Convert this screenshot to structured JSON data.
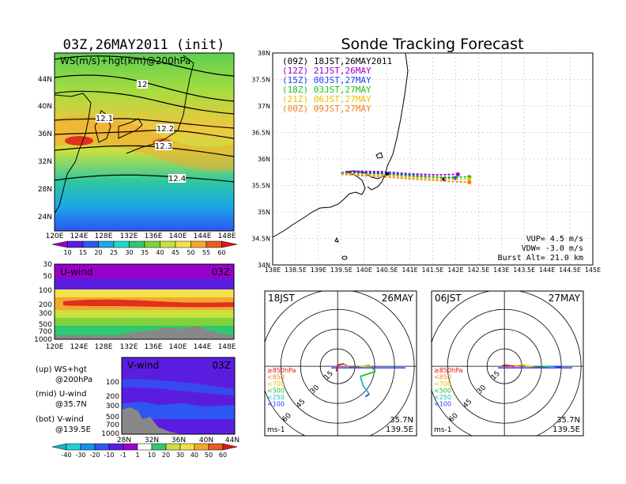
{
  "header": {
    "left_title": "03Z,26MAY2011 (init)",
    "right_title": "Sonde Tracking Forecast"
  },
  "map_panel": {
    "label": "WS(m/s)+hgt(km)@200hPa",
    "lat_ticks": [
      "44N",
      "40N",
      "36N",
      "32N",
      "28N",
      "24N"
    ],
    "lon_ticks": [
      "120E",
      "124E",
      "128E",
      "132E",
      "136E",
      "140E",
      "144E",
      "148E"
    ],
    "contour_labels": [
      "12",
      "12.1",
      "12.2",
      "12.3",
      "12.4"
    ],
    "colorbar_ticks": [
      "10",
      "15",
      "20",
      "25",
      "30",
      "35",
      "40",
      "45",
      "50",
      "55",
      "60"
    ],
    "colorbar_colors": [
      "#9a00cc",
      "#5a1de0",
      "#2e56f0",
      "#1aa8e6",
      "#20d8c8",
      "#30c870",
      "#7fd23c",
      "#c8e040",
      "#f2e04a",
      "#f4a82e",
      "#ee5a22",
      "#d81818"
    ]
  },
  "uwind_panel": {
    "label": "U-wind",
    "time": "03Z",
    "p_ticks": [
      "30",
      "50",
      "100",
      "200",
      "300",
      "500",
      "700",
      "1000"
    ],
    "lon_ticks": [
      "120E",
      "124E",
      "128E",
      "132E",
      "136E",
      "140E",
      "144E",
      "148E"
    ]
  },
  "vwind_panel": {
    "label": "V-wind",
    "time": "03Z",
    "p_ticks": [
      "100",
      "200",
      "300",
      "500",
      "700",
      "1000"
    ],
    "lat_ticks": [
      "28N",
      "32N",
      "36N",
      "40N",
      "44N"
    ],
    "colorbar_ticks": [
      "-40",
      "-30",
      "-20",
      "-10",
      "-1",
      "1",
      "10",
      "20",
      "30",
      "40",
      "50",
      "60"
    ],
    "colorbar_colors": [
      "#18b4c8",
      "#20d0d8",
      "#1a90e8",
      "#2e56f0",
      "#5a1de0",
      "#9a00cc",
      "#ffffff",
      "#30c870",
      "#c8e040",
      "#f2e04a",
      "#f4a82e",
      "#ee5a22",
      "#d81818"
    ]
  },
  "legend_notes": [
    {
      "line1": "(up) WS+hgt",
      "line2": "@200hPa"
    },
    {
      "line1": "(mid) U-wind",
      "line2": "@35.7N"
    },
    {
      "line1": "(bot) V-wind",
      "line2": "@139.5E"
    }
  ],
  "track_panel": {
    "lat_ticks": [
      "38N",
      "37.5N",
      "37N",
      "36.5N",
      "36N",
      "35.5N",
      "35N",
      "34.5N",
      "34N"
    ],
    "lon_ticks": [
      "138E",
      "138.5E",
      "139E",
      "139.5E",
      "140E",
      "140.5E",
      "141E",
      "141.5E",
      "142E",
      "142.5E",
      "143E",
      "143.5E",
      "144E",
      "144.5E",
      "145E"
    ],
    "launches": [
      {
        "text": "(09Z) 18JST,26MAY2011",
        "color": "#000000"
      },
      {
        "text": "(12Z) 21JST,26MAY",
        "color": "#a000c8"
      },
      {
        "text": "(15Z) 00JST,27MAY",
        "color": "#2040ff"
      },
      {
        "text": "(18Z) 03JST,27MAY",
        "color": "#20c020"
      },
      {
        "text": "(21Z) 06JST,27MAY",
        "color": "#f0c000"
      },
      {
        "text": "(00Z) 09JST,27MAY",
        "color": "#f08020"
      }
    ],
    "vup": "VUP= 4.5 m/s",
    "vdw": "VDW= -3.0 m/s",
    "burst": "Burst Alt= 21.0 km"
  },
  "hodo_left": {
    "time": "18JST",
    "date": "26MAY",
    "ring_labels": [
      "15",
      "30",
      "45",
      "60"
    ],
    "levels": [
      {
        "text": "≥850hPa",
        "color": "#e81010"
      },
      {
        "text": "<850",
        "color": "#f08020"
      },
      {
        "text": "<700",
        "color": "#e0c000"
      },
      {
        "text": "<500",
        "color": "#20c020"
      },
      {
        "text": "<250",
        "color": "#18b4c8"
      },
      {
        "text": "<100",
        "color": "#2040ff"
      }
    ],
    "lat": "35.7N",
    "lon": "139.5E",
    "unit": "ms-1"
  },
  "hodo_right": {
    "time": "06JST",
    "date": "27MAY",
    "ring_labels": [
      "15",
      "30",
      "45",
      "60"
    ],
    "levels": [
      {
        "text": "≥850hPa",
        "color": "#e81010"
      },
      {
        "text": "<850",
        "color": "#f08020"
      },
      {
        "text": "<700",
        "color": "#e0c000"
      },
      {
        "text": "<500",
        "color": "#20c020"
      },
      {
        "text": "<250",
        "color": "#18b4c8"
      },
      {
        "text": "<100",
        "color": "#2040ff"
      }
    ],
    "lat": "35.7N",
    "lon": "139.5E",
    "unit": "ms-1"
  },
  "chart_data": [
    {
      "type": "heatmap",
      "title": "03Z,26MAY2011 (init)",
      "subtitle": "WS(m/s)+hgt(km)@200hPa",
      "xlim": [
        120,
        149
      ],
      "ylim": [
        22,
        47
      ],
      "height_contours_km": [
        12,
        12.1,
        12.2,
        12.3,
        12.4
      ],
      "colorbar_values_ms": [
        10,
        15,
        20,
        25,
        30,
        35,
        40,
        45,
        50,
        55,
        60
      ]
    },
    {
      "type": "heatmap",
      "title": "U-wind",
      "xlim": [
        120,
        149
      ],
      "pressure_levels_hPa": [
        30,
        50,
        100,
        200,
        300,
        500,
        700,
        1000
      ]
    },
    {
      "type": "heatmap",
      "title": "V-wind",
      "xlim": [
        28,
        44
      ],
      "pressure_levels_hPa": [
        100,
        200,
        300,
        500,
        700,
        1000
      ],
      "colorbar_values_ms": [
        -40,
        -30,
        -20,
        -10,
        -1,
        1,
        10,
        20,
        30,
        40,
        50,
        60
      ]
    },
    {
      "type": "line",
      "title": "Sonde Tracking Forecast",
      "xlim": [
        138,
        145
      ],
      "ylim": [
        34,
        38
      ],
      "series": [
        {
          "name": "(09Z) 18JST,26MAY2011",
          "color": "#000000",
          "lon": [
            139.5,
            139.9,
            140.4,
            140.9,
            141.4,
            141.75
          ],
          "lat": [
            35.73,
            35.74,
            35.72,
            35.68,
            35.64,
            35.62
          ]
        },
        {
          "name": "(12Z) 21JST,26MAY",
          "color": "#a000c8",
          "lon": [
            139.5,
            139.9,
            140.4,
            141.0,
            141.6,
            142.05
          ],
          "lat": [
            35.74,
            35.77,
            35.76,
            35.72,
            35.7,
            35.71
          ]
        },
        {
          "name": "(15Z) 00JST,27MAY",
          "color": "#2040ff",
          "lon": [
            139.5,
            139.9,
            140.4,
            141.0,
            141.6,
            142.0
          ],
          "lat": [
            35.74,
            35.75,
            35.74,
            35.7,
            35.66,
            35.64
          ]
        },
        {
          "name": "(18Z) 03JST,27MAY",
          "color": "#20c020",
          "lon": [
            139.5,
            139.9,
            140.4,
            141.0,
            141.7,
            142.3
          ],
          "lat": [
            35.73,
            35.72,
            35.71,
            35.68,
            35.66,
            35.66
          ]
        },
        {
          "name": "(21Z) 06JST,27MAY",
          "color": "#f0c000",
          "lon": [
            139.5,
            139.9,
            140.5,
            141.1,
            141.8,
            142.3
          ],
          "lat": [
            35.72,
            35.71,
            35.69,
            35.65,
            35.62,
            35.62
          ]
        },
        {
          "name": "(00Z) 09JST,27MAY",
          "color": "#f08020",
          "lon": [
            139.5,
            139.9,
            140.5,
            141.1,
            141.8,
            142.3
          ],
          "lat": [
            35.71,
            35.69,
            35.66,
            35.62,
            35.58,
            35.56
          ]
        }
      ]
    },
    {
      "type": "line",
      "title": "18JST 26MAY",
      "u": [
        -1,
        0,
        5,
        10,
        15,
        25,
        28,
        30,
        18,
        20,
        25,
        22
      ],
      "v": [
        -4,
        1,
        2,
        -1,
        -1,
        1,
        -2,
        -4,
        -8,
        -15,
        -22,
        -24
      ]
    },
    {
      "type": "line",
      "title": "06JST 27MAY",
      "u": [
        -2,
        0,
        8,
        15,
        25,
        35,
        40,
        45
      ],
      "v": [
        0,
        1,
        0,
        1,
        -1,
        0,
        0,
        -1
      ]
    }
  ]
}
